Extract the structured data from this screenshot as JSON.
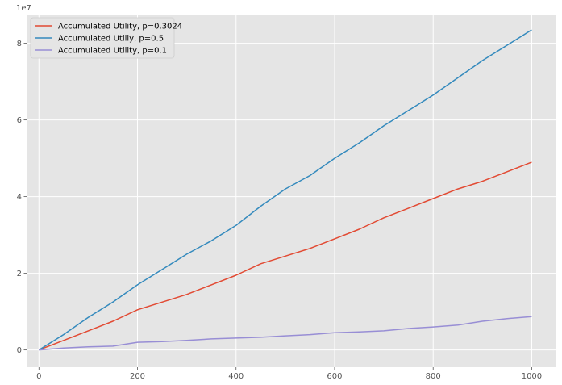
{
  "chart_data": {
    "type": "line",
    "title": "",
    "xlabel": "",
    "ylabel": "",
    "y_offset_label": "1e7",
    "xlim": [
      -25,
      1050
    ],
    "ylim": [
      -4500000,
      87500000
    ],
    "x_ticks": [
      0,
      200,
      400,
      600,
      800,
      1000
    ],
    "x_tick_labels": [
      "0",
      "200",
      "400",
      "600",
      "800",
      "1000"
    ],
    "y_ticks": [
      0,
      20000000,
      40000000,
      60000000,
      80000000
    ],
    "y_tick_labels": [
      "0",
      "2",
      "4",
      "6",
      "8"
    ],
    "grid": true,
    "legend_position": "top-left",
    "series": [
      {
        "name": "Accumulated Utility, p=0.3024",
        "color": "#E24A33",
        "x": [
          0,
          50,
          100,
          150,
          200,
          250,
          300,
          350,
          400,
          450,
          500,
          550,
          600,
          650,
          700,
          750,
          800,
          850,
          900,
          950,
          1000
        ],
        "y": [
          0,
          2500000,
          5000000,
          7500000,
          10500000,
          12500000,
          14500000,
          17000000,
          19500000,
          22500000,
          24500000,
          26500000,
          29000000,
          31500000,
          34500000,
          37000000,
          39500000,
          42000000,
          44000000,
          46500000,
          49000000
        ]
      },
      {
        "name": "Accumulated Utiliy, p=0.5",
        "color": "#348ABD",
        "x": [
          0,
          50,
          100,
          150,
          200,
          250,
          300,
          350,
          400,
          450,
          500,
          550,
          600,
          650,
          700,
          750,
          800,
          850,
          900,
          950,
          1000
        ],
        "y": [
          0,
          4000000,
          8500000,
          12500000,
          17000000,
          21000000,
          25000000,
          28500000,
          32500000,
          37500000,
          42000000,
          45500000,
          50000000,
          54000000,
          58500000,
          62500000,
          66500000,
          71000000,
          75500000,
          79500000,
          83500000
        ]
      },
      {
        "name": "Accumulated Utility, p=0.1",
        "color": "#988ED5",
        "x": [
          0,
          50,
          100,
          150,
          200,
          250,
          300,
          350,
          400,
          450,
          500,
          550,
          600,
          650,
          700,
          750,
          800,
          850,
          900,
          950,
          1000
        ],
        "y": [
          0,
          500000,
          800000,
          1000000,
          2000000,
          2200000,
          2500000,
          2900000,
          3100000,
          3300000,
          3700000,
          4000000,
          4500000,
          4700000,
          5000000,
          5600000,
          6000000,
          6500000,
          7500000,
          8200000,
          8700000
        ]
      }
    ]
  }
}
